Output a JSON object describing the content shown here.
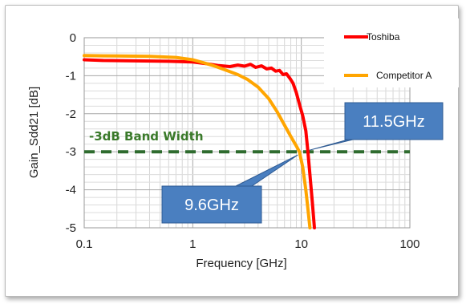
{
  "chart_data": {
    "type": "line",
    "title": "",
    "xlabel": "Frequency [GHz]",
    "ylabel": "Gain_Sdd21 [dB]",
    "xscale": "log",
    "xlim": [
      0.1,
      100
    ],
    "ylim": [
      -5,
      0
    ],
    "x_ticks": [
      "0.1",
      "1",
      "10",
      "100"
    ],
    "y_ticks": [
      "0",
      "-1",
      "-2",
      "-3",
      "-4",
      "-5"
    ],
    "grid": true,
    "legend_position": "top-right",
    "series": [
      {
        "name": "Toshiba",
        "color": "#ff0000",
        "points": [
          [
            0.1,
            -0.58
          ],
          [
            0.15,
            -0.6
          ],
          [
            0.3,
            -0.61
          ],
          [
            0.6,
            -0.62
          ],
          [
            1.0,
            -0.64
          ],
          [
            1.3,
            -0.68
          ],
          [
            1.7,
            -0.73
          ],
          [
            2.2,
            -0.76
          ],
          [
            2.6,
            -0.72
          ],
          [
            3.0,
            -0.75
          ],
          [
            3.4,
            -0.7
          ],
          [
            3.8,
            -0.78
          ],
          [
            4.3,
            -0.74
          ],
          [
            4.8,
            -0.82
          ],
          [
            5.3,
            -0.8
          ],
          [
            5.8,
            -0.88
          ],
          [
            6.3,
            -0.86
          ],
          [
            6.8,
            -0.97
          ],
          [
            7.3,
            -0.95
          ],
          [
            7.9,
            -1.08
          ],
          [
            8.4,
            -1.2
          ],
          [
            9.0,
            -1.45
          ],
          [
            9.6,
            -1.75
          ],
          [
            10.3,
            -2.05
          ],
          [
            11.0,
            -2.45
          ],
          [
            11.5,
            -3.0
          ],
          [
            12.0,
            -3.6
          ],
          [
            12.6,
            -4.3
          ],
          [
            13.2,
            -5.0
          ]
        ]
      },
      {
        "name": "Competitor A",
        "color": "#ffa500",
        "points": [
          [
            0.1,
            -0.47
          ],
          [
            0.2,
            -0.48
          ],
          [
            0.4,
            -0.49
          ],
          [
            0.7,
            -0.52
          ],
          [
            1.0,
            -0.58
          ],
          [
            1.3,
            -0.67
          ],
          [
            1.6,
            -0.75
          ],
          [
            2.0,
            -0.85
          ],
          [
            2.6,
            -0.97
          ],
          [
            3.2,
            -1.1
          ],
          [
            4.0,
            -1.3
          ],
          [
            5.0,
            -1.6
          ],
          [
            6.0,
            -1.95
          ],
          [
            7.0,
            -2.3
          ],
          [
            8.0,
            -2.6
          ],
          [
            9.0,
            -2.85
          ],
          [
            9.6,
            -3.0
          ],
          [
            10.3,
            -3.4
          ],
          [
            11.0,
            -4.0
          ],
          [
            11.6,
            -4.6
          ],
          [
            12.0,
            -5.0
          ]
        ]
      }
    ],
    "reference_line": {
      "y": -3,
      "label": "-3dB Band Width",
      "color": "#2e6b2e"
    },
    "annotations": [
      {
        "text": "11.5GHz",
        "x": 11.5,
        "y": -3,
        "color": "#4a7fc0"
      },
      {
        "text": "9.6GHz",
        "x": 9.6,
        "y": -3,
        "color": "#4a7fc0"
      }
    ]
  }
}
